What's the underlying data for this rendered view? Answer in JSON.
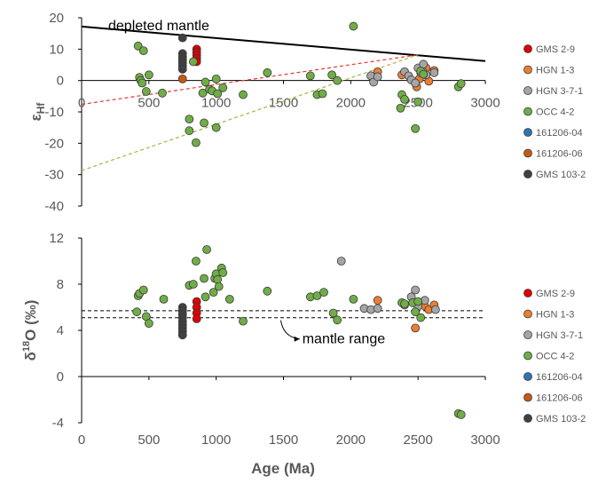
{
  "chart_data": [
    {
      "type": "scatter",
      "panel": "top",
      "ylabel": "εHf",
      "xlim": [
        0,
        3000
      ],
      "ylim": [
        -40,
        20
      ],
      "x_ticks": [
        "0",
        "500",
        "1000",
        "1500",
        "2000",
        "2500",
        "3000"
      ],
      "y_ticks": [
        "20",
        "10",
        "0",
        "-10",
        "-20",
        "-30",
        "-40"
      ],
      "lines": [
        {
          "label": "depleted mantle",
          "style": "solid",
          "color": "#000000",
          "x": [
            0,
            3000
          ],
          "y": [
            17.2,
            6.2
          ]
        },
        {
          "label": "",
          "style": "dashed",
          "color": "#e53935",
          "x": [
            0,
            2500
          ],
          "y": [
            -7.6,
            8.2
          ]
        },
        {
          "label": "",
          "style": "dashed",
          "color": "#a6b442",
          "x": [
            0,
            2500
          ],
          "y": [
            -28.7,
            8.2
          ]
        }
      ],
      "series": [
        {
          "name": "GMS 2-9",
          "color": "#e00000",
          "points": [
            [
              855,
              10
            ],
            [
              855,
              9
            ],
            [
              855,
              8
            ],
            [
              855,
              7
            ],
            [
              855,
              6
            ]
          ]
        },
        {
          "name": "HGN 1-3",
          "color": "#ed7d31",
          "points": [
            [
              2200,
              2.8
            ],
            [
              2380,
              1.8
            ],
            [
              2490,
              -2
            ],
            [
              2510,
              0.5
            ],
            [
              2560,
              4
            ],
            [
              2580,
              -0.2
            ],
            [
              2620,
              3.2
            ]
          ]
        },
        {
          "name": "HGN 3-7-1",
          "color": "#a5a5a5",
          "points": [
            [
              2150,
              1.5
            ],
            [
              2170,
              -0.5
            ],
            [
              2200,
              1.2
            ],
            [
              2400,
              2.8
            ],
            [
              2430,
              1.5
            ],
            [
              2450,
              0.2
            ],
            [
              2480,
              -0.8
            ],
            [
              2500,
              4
            ],
            [
              2520,
              2.5
            ],
            [
              2530,
              3.2
            ],
            [
              2540,
              5.2
            ],
            [
              2560,
              1.8
            ],
            [
              2620,
              2.5
            ]
          ]
        },
        {
          "name": "OCC 4-2",
          "color": "#70ad47",
          "points": [
            [
              420,
              11
            ],
            [
              430,
              1
            ],
            [
              440,
              0
            ],
            [
              450,
              -0.8
            ],
            [
              460,
              9.5
            ],
            [
              480,
              -3.5
            ],
            [
              500,
              1.8
            ],
            [
              600,
              -4
            ],
            [
              800,
              -12.3
            ],
            [
              800,
              -16
            ],
            [
              830,
              6
            ],
            [
              850,
              -19.8
            ],
            [
              900,
              -4
            ],
            [
              910,
              -13.5
            ],
            [
              920,
              -0.5
            ],
            [
              950,
              -2.8
            ],
            [
              970,
              -3.3
            ],
            [
              1000,
              -15
            ],
            [
              1000,
              0.5
            ],
            [
              1010,
              -4.2
            ],
            [
              1050,
              -2.3
            ],
            [
              1200,
              -4.5
            ],
            [
              1380,
              2.5
            ],
            [
              1700,
              1.5
            ],
            [
              1750,
              -4.5
            ],
            [
              1790,
              -4.2
            ],
            [
              1860,
              1.8
            ],
            [
              1900,
              0
            ],
            [
              2020,
              17.3
            ],
            [
              2370,
              -8.8
            ],
            [
              2380,
              -4.5
            ],
            [
              2400,
              -6
            ],
            [
              2480,
              -15.3
            ],
            [
              2500,
              -6.8
            ],
            [
              2520,
              3
            ],
            [
              2540,
              2
            ],
            [
              2800,
              -2
            ],
            [
              2820,
              -1
            ]
          ]
        },
        {
          "name": "161206-04",
          "color": "#2e75b6",
          "points": []
        },
        {
          "name": "161206-06",
          "color": "#c55a11",
          "points": [
            [
              750,
              0.5
            ]
          ]
        },
        {
          "name": "GMS 103-2",
          "color": "#404040",
          "points": [
            [
              750,
              13.6
            ],
            [
              750,
              8.6
            ],
            [
              750,
              7.6
            ],
            [
              750,
              6.6
            ],
            [
              750,
              5.6
            ],
            [
              750,
              4.6
            ],
            [
              750,
              3.6
            ]
          ]
        }
      ]
    },
    {
      "type": "scatter",
      "panel": "bottom",
      "xlabel": "Age (Ma)",
      "ylabel": "δ18O (‰)",
      "xlim": [
        0,
        3000
      ],
      "ylim": [
        -4,
        12
      ],
      "x_ticks": [
        "0",
        "500",
        "1000",
        "1500",
        "2000",
        "2500",
        "3000"
      ],
      "y_ticks": [
        "12",
        "8",
        "4",
        "0",
        "-4"
      ],
      "reference_lines": [
        {
          "style": "dashed",
          "color": "#000000",
          "y": 5.7
        },
        {
          "style": "dashed",
          "color": "#000000",
          "y": 5.1
        }
      ],
      "annotations": [
        {
          "text": "mantle range",
          "arrow": true
        }
      ],
      "series": [
        {
          "name": "GMS 2-9",
          "color": "#e00000",
          "points": [
            [
              855,
              6.5
            ],
            [
              855,
              6.0
            ],
            [
              855,
              5.5
            ],
            [
              855,
              5.0
            ]
          ]
        },
        {
          "name": "HGN 1-3",
          "color": "#ed7d31",
          "points": [
            [
              2200,
              6.6
            ],
            [
              2480,
              4.2
            ],
            [
              2550,
              6.1
            ],
            [
              2580,
              5.8
            ],
            [
              2620,
              6.2
            ]
          ]
        },
        {
          "name": "HGN 3-7-1",
          "color": "#a5a5a5",
          "points": [
            [
              1930,
              10
            ],
            [
              2100,
              5.9
            ],
            [
              2150,
              5.8
            ],
            [
              2200,
              5.9
            ],
            [
              2400,
              6.2
            ],
            [
              2450,
              6.9
            ],
            [
              2480,
              7.5
            ],
            [
              2500,
              6.1
            ],
            [
              2550,
              6.6
            ],
            [
              2630,
              5.8
            ]
          ]
        },
        {
          "name": "OCC 4-2",
          "color": "#70ad47",
          "points": [
            [
              410,
              5.6
            ],
            [
              420,
              7
            ],
            [
              430,
              7.2
            ],
            [
              460,
              7.5
            ],
            [
              480,
              5.2
            ],
            [
              500,
              4.6
            ],
            [
              610,
              6.7
            ],
            [
              800,
              7.9
            ],
            [
              830,
              8
            ],
            [
              850,
              10
            ],
            [
              910,
              8.5
            ],
            [
              920,
              6.9
            ],
            [
              930,
              11
            ],
            [
              980,
              7.3
            ],
            [
              990,
              8.5
            ],
            [
              1000,
              8.9
            ],
            [
              1010,
              8.4
            ],
            [
              1020,
              7.8
            ],
            [
              1040,
              9.4
            ],
            [
              1050,
              9
            ],
            [
              1100,
              6.7
            ],
            [
              1200,
              4.8
            ],
            [
              1380,
              7.4
            ],
            [
              1700,
              6.9
            ],
            [
              1750,
              7
            ],
            [
              1800,
              7.3
            ],
            [
              1870,
              5.5
            ],
            [
              1900,
              4.9
            ],
            [
              2020,
              6.7
            ],
            [
              2380,
              6.4
            ],
            [
              2400,
              6.3
            ],
            [
              2460,
              6.4
            ],
            [
              2480,
              5.6
            ],
            [
              2500,
              6.5
            ],
            [
              2520,
              5.1
            ],
            [
              2800,
              -3.2
            ],
            [
              2820,
              -3.3
            ]
          ]
        },
        {
          "name": "161206-04",
          "color": "#2e75b6",
          "points": []
        },
        {
          "name": "161206-06",
          "color": "#c55a11",
          "points": []
        },
        {
          "name": "GMS 103-2",
          "color": "#404040",
          "points": [
            [
              750,
              6.0
            ],
            [
              750,
              5.7
            ],
            [
              750,
              5.4
            ],
            [
              750,
              5.1
            ],
            [
              750,
              4.8
            ],
            [
              750,
              4.5
            ],
            [
              750,
              4.2
            ],
            [
              750,
              3.9
            ],
            [
              750,
              3.6
            ]
          ]
        }
      ],
      "legend": [
        "GMS 2-9",
        "HGN 1-3",
        "HGN 3-7-1",
        "OCC 4-2",
        "161206-04",
        "161206-06",
        "GMS 103-2"
      ]
    }
  ],
  "top_legend": [
    "GMS 2-9",
    "HGN 1-3",
    "HGN 3-7-1",
    "OCC 4-2",
    "161206-04",
    "161206-06",
    "GMS 103-2"
  ]
}
